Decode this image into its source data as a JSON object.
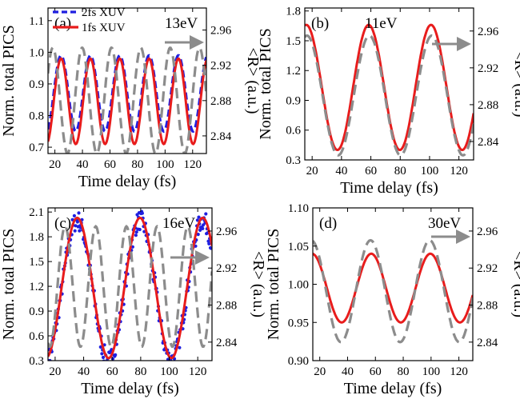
{
  "legend": {
    "series": [
      {
        "name": "2fs XUV",
        "color": "#1f1fe0",
        "style": "dashed"
      },
      {
        "name": "1fs XUV",
        "color": "#e81c1c",
        "style": "solid"
      }
    ],
    "placement": "top-left of panel (a)"
  },
  "colors": {
    "red": "#e81c1c",
    "blue": "#1f1fe0",
    "gray": "#8c8c8c"
  },
  "chart_data": [
    {
      "type": "line",
      "label": "(a)",
      "energy": "13eV",
      "xlabel": "Time delay (fs)",
      "ylabel": "Norm. total PICS",
      "y2label": "<R> (a.u.)",
      "xlim": [
        15,
        130
      ],
      "ylim": [
        0.68,
        1.14
      ],
      "y2lim": [
        2.82,
        2.985
      ],
      "xticks": [
        20,
        40,
        60,
        80,
        100,
        120
      ],
      "yticks": [
        "0.7",
        "0.8",
        "0.9",
        "1.0",
        "1.1"
      ],
      "y2ticks": [
        "2.84",
        "2.88",
        "2.92",
        "2.96"
      ],
      "series": [
        {
          "name": "2fs XUV",
          "kind": "dashed",
          "color": "blue",
          "mean": 0.87,
          "amp": 0.12,
          "period": 21.3,
          "phase_x": 24.5
        },
        {
          "name": "1fs XUV",
          "kind": "solid",
          "color": "red",
          "mean": 0.845,
          "amp": 0.135,
          "period": 21.3,
          "phase_x": 24.5
        },
        {
          "name": "<R>",
          "kind": "dashed",
          "axis": "right",
          "color": "gray",
          "mean": 2.88,
          "amp": 0.06,
          "period": 21.3,
          "phase_x": 18.5
        }
      ]
    },
    {
      "type": "line",
      "label": "(b)",
      "energy": "11eV",
      "xlabel": "Time delay (fs)",
      "ylabel": "Norm. total PICS",
      "y2label": "<R> (a.u.)",
      "xlim": [
        15,
        130
      ],
      "ylim": [
        0.3,
        1.83
      ],
      "y2lim": [
        2.82,
        2.985
      ],
      "xticks": [
        20,
        40,
        60,
        80,
        100,
        120
      ],
      "yticks": [
        "0.3",
        "0.6",
        "0.9",
        "1.2",
        "1.5",
        "1.8"
      ],
      "y2ticks": [
        "2.84",
        "2.88",
        "2.92",
        "2.96"
      ],
      "series": [
        {
          "name": "1fs XUV",
          "kind": "solid",
          "color": "red",
          "mean": 1.03,
          "amp": 0.63,
          "period": 42.5,
          "phase_x": 16.0
        },
        {
          "name": "<R>",
          "kind": "dashed",
          "axis": "right",
          "color": "gray",
          "mean": 2.89,
          "amp": 0.065,
          "period": 42.5,
          "phase_x": 16.5
        }
      ]
    },
    {
      "type": "line",
      "label": "(c)",
      "energy": "16eV",
      "xlabel": "Time delay (fs)",
      "ylabel": "Norm. total PICS",
      "y2label": "<R> (a.u.)",
      "xlim": [
        15,
        130
      ],
      "ylim": [
        0.3,
        2.15
      ],
      "y2lim": [
        2.82,
        2.985
      ],
      "xticks": [
        20,
        40,
        60,
        80,
        100,
        120
      ],
      "yticks": [
        "0.3",
        "0.6",
        "0.9",
        "1.2",
        "1.5",
        "1.8",
        "2.1"
      ],
      "y2ticks": [
        "2.84",
        "2.88",
        "2.92",
        "2.96"
      ],
      "series": [
        {
          "name": "2fs XUV",
          "kind": "scatter",
          "color": "blue",
          "mean": 1.15,
          "amp": 0.85,
          "period": 44,
          "phase_x": 35.5,
          "noise": 0.12
        },
        {
          "name": "1fs XUV",
          "kind": "solid",
          "color": "red",
          "mean": 1.18,
          "amp": 0.85,
          "period": 44,
          "phase_x": 35.5
        },
        {
          "name": "<R>",
          "kind": "dashed",
          "axis": "right",
          "color": "gray",
          "mean": 2.9,
          "amp": 0.065,
          "period": 21.5,
          "phase_x": 27.0
        }
      ]
    },
    {
      "type": "line",
      "label": "(d)",
      "energy": "30eV",
      "xlabel": "Time delay (fs)",
      "ylabel": "Norm. total PICS",
      "y2label": "<R> (a.u.)",
      "xlim": [
        15,
        130
      ],
      "ylim": [
        0.9,
        1.1
      ],
      "y2lim": [
        2.82,
        2.985
      ],
      "xticks": [
        20,
        40,
        60,
        80,
        100,
        120
      ],
      "yticks": [
        "0.90",
        "0.95",
        "1.00",
        "1.05",
        "1.10"
      ],
      "y2ticks": [
        "2.84",
        "2.88",
        "2.92",
        "2.96"
      ],
      "series": [
        {
          "name": "1fs XUV",
          "kind": "solid",
          "color": "red",
          "mean": 0.995,
          "amp": 0.045,
          "period": 42.5,
          "phase_x": 14.5
        },
        {
          "name": "<R>",
          "kind": "dashed",
          "axis": "right",
          "color": "gray",
          "mean": 2.895,
          "amp": 0.055,
          "period": 42.5,
          "phase_x": 14.0
        }
      ]
    }
  ]
}
